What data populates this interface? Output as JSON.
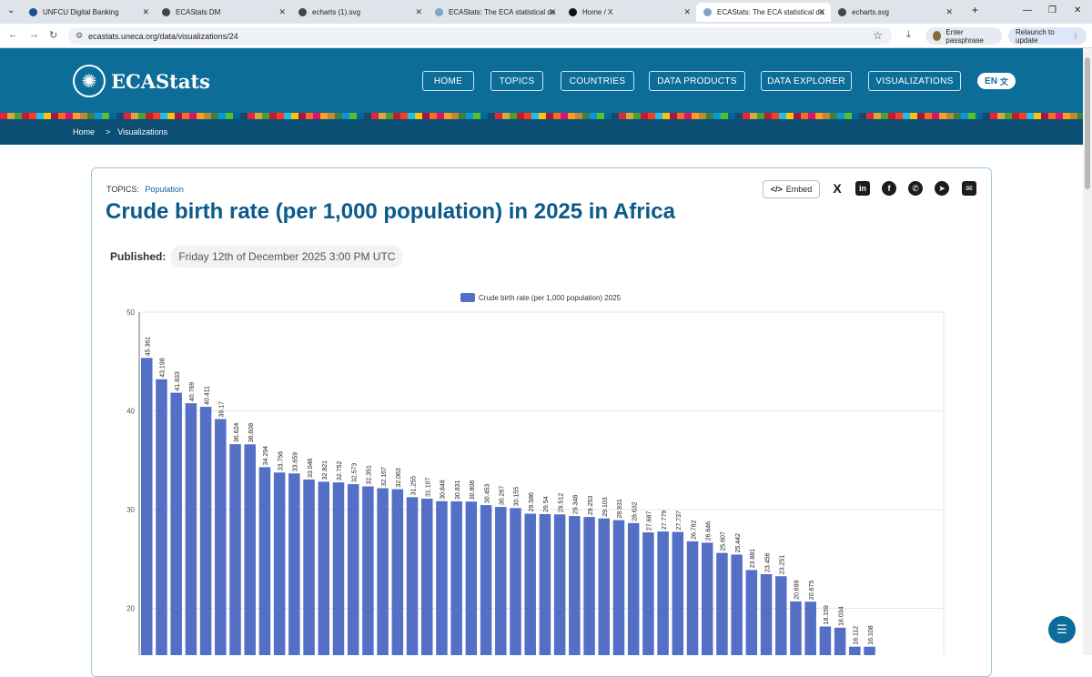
{
  "browser": {
    "tabs": [
      {
        "title": "UNFCU Digital Banking",
        "color": "#1d4f91"
      },
      {
        "title": "ECAStats DM",
        "color": "#444444"
      },
      {
        "title": "echarts (1).svg",
        "color": "#444444"
      },
      {
        "title": "ECAStats: The ECA statistical da",
        "color": "#7fa6c9"
      },
      {
        "title": "Home / X",
        "color": "#111111"
      },
      {
        "title": "ECAStats: The ECA statistical da",
        "color": "#7fa6c9",
        "active": true
      },
      {
        "title": "echarts.svg",
        "color": "#444444"
      }
    ],
    "url": "ecastats.uneca.org/data/visualizations/24",
    "passphrase_label": "Enter passphrase",
    "relaunch_label": "Relaunch to update"
  },
  "site": {
    "brand": "ECAStats",
    "nav": [
      "HOME",
      "TOPICS",
      "COUNTRIES",
      "DATA PRODUCTS",
      "DATA EXPLORER",
      "VISUALIZATIONS"
    ],
    "lang": "EN",
    "breadcrumb": {
      "home": "Home",
      "current": "Visualizations"
    }
  },
  "card": {
    "topics_label": "TOPICS:",
    "topic": "Population",
    "title": "Crude birth rate (per 1,000 population) in 2025 in Africa",
    "published_label": "Published:",
    "published_value": "Friday 12th of December 2025 3:00 PM UTC",
    "embed_label": "Embed",
    "share_icons": [
      "x-icon",
      "linkedin-icon",
      "facebook-icon",
      "whatsapp-icon",
      "telegram-icon",
      "email-icon"
    ]
  },
  "chart_data": {
    "type": "bar",
    "series": [
      {
        "name": "Crude birth rate (per 1,000 population) 2025",
        "color": "#5470c6",
        "values": [
          45.361,
          43.198,
          41.833,
          40.769,
          40.411,
          39.17,
          36.624,
          36.608,
          34.294,
          33.756,
          33.659,
          33.046,
          32.821,
          32.752,
          32.573,
          32.351,
          32.167,
          32.063,
          31.255,
          31.107,
          30.848,
          30.831,
          30.808,
          30.453,
          30.267,
          30.155,
          29.586,
          29.54,
          29.512,
          29.348,
          29.253,
          29.103,
          28.931,
          28.632,
          27.687,
          27.779,
          27.737,
          26.782,
          26.646,
          25.607,
          25.442,
          23.881,
          23.456,
          23.251,
          20.699,
          20.675,
          18.159,
          18.034,
          16.112,
          16.108
        ]
      }
    ],
    "y_ticks": [
      "50",
      "40",
      "30",
      "20"
    ],
    "ylim": [
      10,
      50
    ],
    "grid": true,
    "legend_position": "top-center"
  }
}
